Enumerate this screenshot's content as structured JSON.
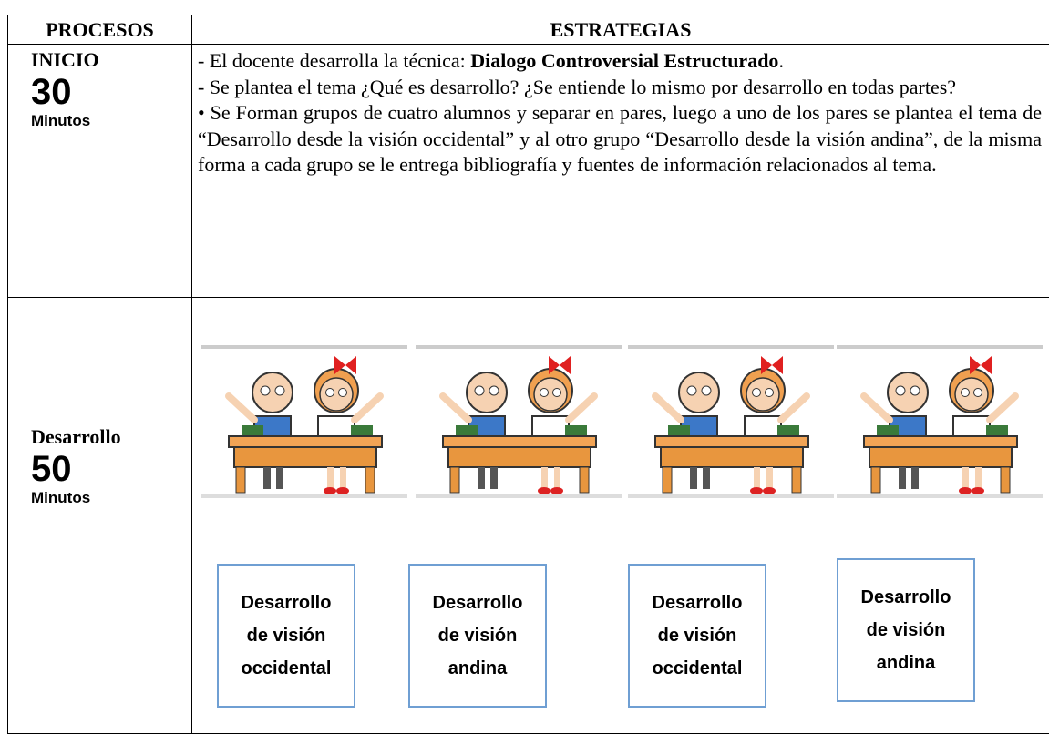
{
  "table": {
    "header": [
      "PROCESOS",
      "ESTRATEGIAS"
    ],
    "rows": [
      {
        "stage": "INICIO",
        "minutes": "30",
        "unit": "Minutos",
        "intro": {
          "text": "- El docente desarrolla la técnica: ",
          "emphasis": "Dialogo Controversial Estructurado",
          "end": "."
        },
        "paragraphs": [
          "- Se plantea el tema ¿Qué es desarrollo? ¿Se entiende lo mismo por desarrollo en todas partes?",
          "• Se Forman grupos de cuatro alumnos y separar en pares, luego a uno de los pares se plantea el tema de “Desarrollo desde la visión occidental” y al otro grupo “Desarrollo desde la visión andina”, de la misma forma a cada grupo se le entrega bibliografía y fuentes de información relacionados al tema."
        ]
      },
      {
        "stage": "Desarrollo",
        "minutes": "50",
        "unit": "Minutos",
        "boxes": [
          [
            "Desarrollo",
            "de visión",
            "occidental"
          ],
          [
            "Desarrollo",
            "de visión",
            "andina"
          ],
          [
            "Desarrollo",
            "de visión",
            "occidental"
          ],
          [
            "Desarrollo",
            "de visión",
            "andina"
          ]
        ]
      }
    ]
  }
}
